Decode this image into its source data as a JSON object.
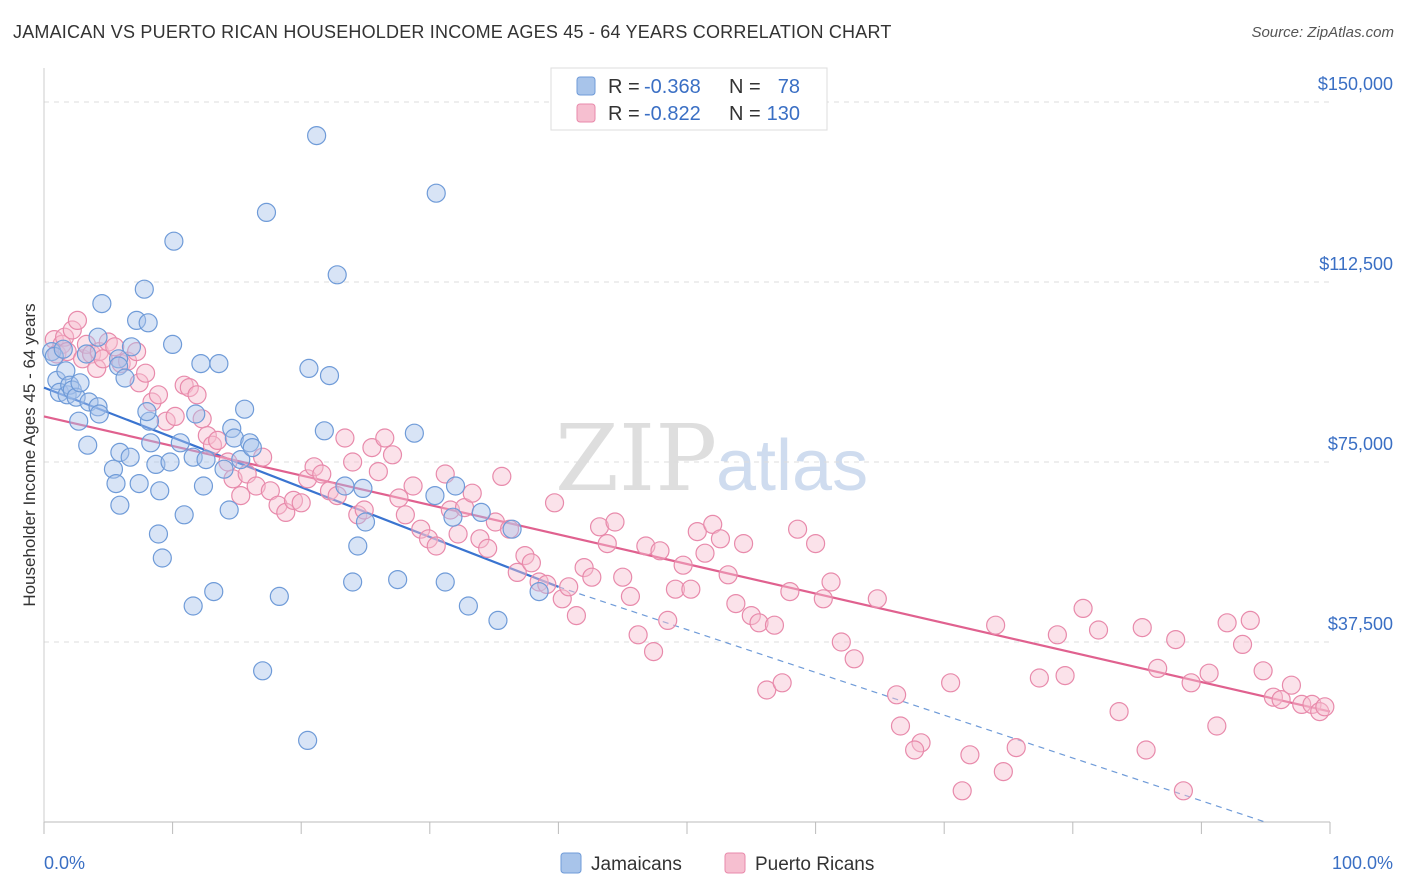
{
  "title": "JAMAICAN VS PUERTO RICAN HOUSEHOLDER INCOME AGES 45 - 64 YEARS CORRELATION CHART",
  "source": "Source: ZipAtlas.com",
  "watermark": {
    "zip": "ZIP",
    "atlas": "atlas"
  },
  "legend": {
    "r_label": "R =",
    "n_label": "N =",
    "rows": [
      {
        "r": "-0.368",
        "n": "78",
        "color": "#a8c4ea",
        "stroke": "#6f9bd8"
      },
      {
        "r": "-0.822",
        "n": "130",
        "color": "#f6bfd0",
        "stroke": "#e88aab"
      }
    ]
  },
  "bottom_legend": [
    {
      "label": "Jamaicans",
      "color": "#a8c4ea",
      "stroke": "#6f9bd8"
    },
    {
      "label": "Puerto Ricans",
      "color": "#f6bfd0",
      "stroke": "#e88aab"
    }
  ],
  "chart_data": {
    "type": "scatter",
    "title": "JAMAICAN VS PUERTO RICAN HOUSEHOLDER INCOME AGES 45 - 64 YEARS CORRELATION CHART",
    "xlabel": "",
    "ylabel": "Householder Income Ages 45 - 64 years",
    "xlim": [
      0,
      100
    ],
    "ylim": [
      0,
      155000
    ],
    "x_tick_labels": [
      "0.0%",
      "100.0%"
    ],
    "y_ticks": [
      37500,
      75000,
      112500,
      150000
    ],
    "y_tick_labels": [
      "$37,500",
      "$75,000",
      "$112,500",
      "$150,000"
    ],
    "grid": true,
    "legend_position": "top-center",
    "series": [
      {
        "name": "Jamaicans",
        "color": "#6f9bd8",
        "fill": "#a8c4ea",
        "trend": {
          "x0": 0,
          "y0": 90500,
          "x1": 40,
          "y1": 49000,
          "dash_to_x": 100,
          "dash_to_y": -4500
        },
        "points": [
          [
            0.6,
            98000
          ],
          [
            0.8,
            97000
          ],
          [
            1,
            92000
          ],
          [
            1.2,
            89500
          ],
          [
            1.5,
            98500
          ],
          [
            1.7,
            94000
          ],
          [
            1.8,
            89000
          ],
          [
            2,
            91000
          ],
          [
            2.2,
            90000
          ],
          [
            2.5,
            88500
          ],
          [
            2.8,
            91500
          ],
          [
            2.7,
            83500
          ],
          [
            3.3,
            97500
          ],
          [
            3.5,
            87500
          ],
          [
            3.4,
            78500
          ],
          [
            4.2,
            86500
          ],
          [
            4.3,
            85000
          ],
          [
            4.2,
            101000
          ],
          [
            4.5,
            108000
          ],
          [
            5.4,
            73500
          ],
          [
            5.6,
            70500
          ],
          [
            5.8,
            96500
          ],
          [
            5.8,
            95000
          ],
          [
            5.9,
            66000
          ],
          [
            5.9,
            77000
          ],
          [
            6.3,
            92500
          ],
          [
            6.8,
            99000
          ],
          [
            7.2,
            104500
          ],
          [
            6.7,
            76000
          ],
          [
            7.4,
            70500
          ],
          [
            8.2,
            83500
          ],
          [
            8,
            85500
          ],
          [
            8.3,
            79000
          ],
          [
            7.8,
            111000
          ],
          [
            8.1,
            104000
          ],
          [
            8.7,
            74500
          ],
          [
            9,
            69000
          ],
          [
            8.9,
            60000
          ],
          [
            9.2,
            55000
          ],
          [
            9.8,
            75000
          ],
          [
            10,
            99500
          ],
          [
            10.6,
            79000
          ],
          [
            10.1,
            121000
          ],
          [
            10.9,
            64000
          ],
          [
            11.6,
            76000
          ],
          [
            11.6,
            45000
          ],
          [
            12.4,
            70000
          ],
          [
            12.2,
            95500
          ],
          [
            11.8,
            85000
          ],
          [
            12.6,
            75500
          ],
          [
            13.2,
            48000
          ],
          [
            13.6,
            95500
          ],
          [
            14,
            73500
          ],
          [
            14.6,
            82000
          ],
          [
            14.4,
            65000
          ],
          [
            14.8,
            80000
          ],
          [
            15.3,
            75500
          ],
          [
            15.6,
            86000
          ],
          [
            16,
            79000
          ],
          [
            16.2,
            78000
          ],
          [
            17,
            31500
          ],
          [
            17.3,
            127000
          ],
          [
            18.3,
            47000
          ],
          [
            20.5,
            17000
          ],
          [
            20.6,
            94500
          ],
          [
            21.2,
            143000
          ],
          [
            22.2,
            93000
          ],
          [
            21.8,
            81500
          ],
          [
            22.8,
            114000
          ],
          [
            23.4,
            70000
          ],
          [
            24,
            50000
          ],
          [
            24.4,
            57500
          ],
          [
            24.8,
            69500
          ],
          [
            25,
            62500
          ],
          [
            27.5,
            50500
          ],
          [
            28.8,
            81000
          ],
          [
            30.4,
            68000
          ],
          [
            30.5,
            131000
          ],
          [
            31.2,
            50000
          ],
          [
            32,
            70000
          ],
          [
            31.8,
            63500
          ],
          [
            33,
            45000
          ],
          [
            34,
            64500
          ],
          [
            35.3,
            42000
          ],
          [
            36.4,
            61000
          ],
          [
            38.5,
            48000
          ]
        ]
      },
      {
        "name": "Puerto Ricans",
        "color": "#e88aab",
        "fill": "#f6bfd0",
        "trend": {
          "x0": 0,
          "y0": 84500,
          "x1": 100,
          "y1": 23000
        },
        "points": [
          [
            0.8,
            100500
          ],
          [
            1,
            97500
          ],
          [
            1.4,
            99500
          ],
          [
            1.6,
            101000
          ],
          [
            1.8,
            98000
          ],
          [
            2.2,
            102500
          ],
          [
            2.6,
            104500
          ],
          [
            3,
            96500
          ],
          [
            3.3,
            99500
          ],
          [
            3.7,
            97500
          ],
          [
            4.1,
            94500
          ],
          [
            4.3,
            98000
          ],
          [
            4.6,
            96500
          ],
          [
            5,
            100000
          ],
          [
            5.5,
            99000
          ],
          [
            6,
            95500
          ],
          [
            6.5,
            96000
          ],
          [
            7.2,
            98000
          ],
          [
            7.4,
            91500
          ],
          [
            7.9,
            93500
          ],
          [
            8.4,
            87500
          ],
          [
            8.9,
            89000
          ],
          [
            9.5,
            83500
          ],
          [
            10.2,
            84500
          ],
          [
            10.9,
            91000
          ],
          [
            11.3,
            90500
          ],
          [
            11.9,
            89000
          ],
          [
            12.3,
            84000
          ],
          [
            12.7,
            80500
          ],
          [
            13.1,
            78500
          ],
          [
            13.5,
            79500
          ],
          [
            14.3,
            75000
          ],
          [
            14.7,
            71500
          ],
          [
            15.3,
            68000
          ],
          [
            15.8,
            72500
          ],
          [
            16.5,
            70000
          ],
          [
            17,
            76000
          ],
          [
            17.6,
            69000
          ],
          [
            18.2,
            66000
          ],
          [
            18.8,
            64500
          ],
          [
            19.4,
            67000
          ],
          [
            20,
            66500
          ],
          [
            20.5,
            71500
          ],
          [
            21,
            74000
          ],
          [
            21.6,
            72500
          ],
          [
            22.2,
            69000
          ],
          [
            22.8,
            68000
          ],
          [
            23.4,
            80000
          ],
          [
            24,
            75000
          ],
          [
            24.4,
            64000
          ],
          [
            24.9,
            65000
          ],
          [
            25.5,
            78000
          ],
          [
            26,
            73000
          ],
          [
            26.5,
            80000
          ],
          [
            27.1,
            76500
          ],
          [
            27.6,
            67500
          ],
          [
            28.1,
            64000
          ],
          [
            28.7,
            70000
          ],
          [
            29.3,
            61000
          ],
          [
            29.9,
            59000
          ],
          [
            30.5,
            57500
          ],
          [
            31.2,
            72500
          ],
          [
            31.6,
            65000
          ],
          [
            32.2,
            60000
          ],
          [
            32.7,
            65500
          ],
          [
            33.3,
            68500
          ],
          [
            33.9,
            59000
          ],
          [
            34.5,
            57000
          ],
          [
            35.1,
            62500
          ],
          [
            35.6,
            72000
          ],
          [
            36.2,
            61000
          ],
          [
            36.8,
            52000
          ],
          [
            37.4,
            55500
          ],
          [
            37.9,
            54000
          ],
          [
            38.5,
            50000
          ],
          [
            39.1,
            49500
          ],
          [
            39.7,
            66500
          ],
          [
            40.3,
            46500
          ],
          [
            40.8,
            49000
          ],
          [
            41.4,
            43000
          ],
          [
            42,
            53000
          ],
          [
            42.6,
            51000
          ],
          [
            43.2,
            61500
          ],
          [
            43.8,
            58000
          ],
          [
            44.4,
            62500
          ],
          [
            45,
            51000
          ],
          [
            45.6,
            47000
          ],
          [
            46.2,
            39000
          ],
          [
            46.8,
            57500
          ],
          [
            47.4,
            35500
          ],
          [
            47.9,
            56500
          ],
          [
            48.5,
            42000
          ],
          [
            49.1,
            48500
          ],
          [
            49.7,
            53500
          ],
          [
            50.3,
            48500
          ],
          [
            50.8,
            60500
          ],
          [
            51.4,
            56000
          ],
          [
            52,
            62000
          ],
          [
            52.6,
            59000
          ],
          [
            53.2,
            51500
          ],
          [
            53.8,
            45500
          ],
          [
            54.4,
            58000
          ],
          [
            55,
            43000
          ],
          [
            55.6,
            41500
          ],
          [
            56.2,
            27500
          ],
          [
            56.8,
            41000
          ],
          [
            57.4,
            29000
          ],
          [
            58,
            48000
          ],
          [
            58.6,
            61000
          ],
          [
            60,
            58000
          ],
          [
            60.6,
            46500
          ],
          [
            61.2,
            50000
          ],
          [
            62,
            37500
          ],
          [
            63,
            34000
          ],
          [
            64.8,
            46500
          ],
          [
            66.3,
            26500
          ],
          [
            68.2,
            16500
          ],
          [
            70.5,
            29000
          ],
          [
            72,
            14000
          ],
          [
            74,
            41000
          ],
          [
            77.4,
            30000
          ],
          [
            78.8,
            39000
          ],
          [
            80.8,
            44500
          ],
          [
            82,
            40000
          ],
          [
            83.6,
            23000
          ],
          [
            85.4,
            40500
          ],
          [
            86.6,
            32000
          ],
          [
            88,
            38000
          ],
          [
            89.2,
            29000
          ],
          [
            90.6,
            31000
          ],
          [
            91.2,
            20000
          ],
          [
            92,
            41500
          ],
          [
            93.2,
            37000
          ],
          [
            93.8,
            42000
          ],
          [
            94.8,
            31500
          ],
          [
            95.6,
            26000
          ],
          [
            96.2,
            25500
          ],
          [
            97,
            28500
          ],
          [
            97.8,
            24500
          ],
          [
            98.6,
            24500
          ],
          [
            99.2,
            23000
          ],
          [
            99.6,
            24000
          ],
          [
            88.6,
            6500
          ],
          [
            85.7,
            15000
          ],
          [
            75.6,
            15500
          ],
          [
            74.6,
            10500
          ],
          [
            71.4,
            6500
          ],
          [
            79.4,
            30500
          ],
          [
            66.6,
            20000
          ],
          [
            67.7,
            15000
          ]
        ]
      }
    ]
  }
}
